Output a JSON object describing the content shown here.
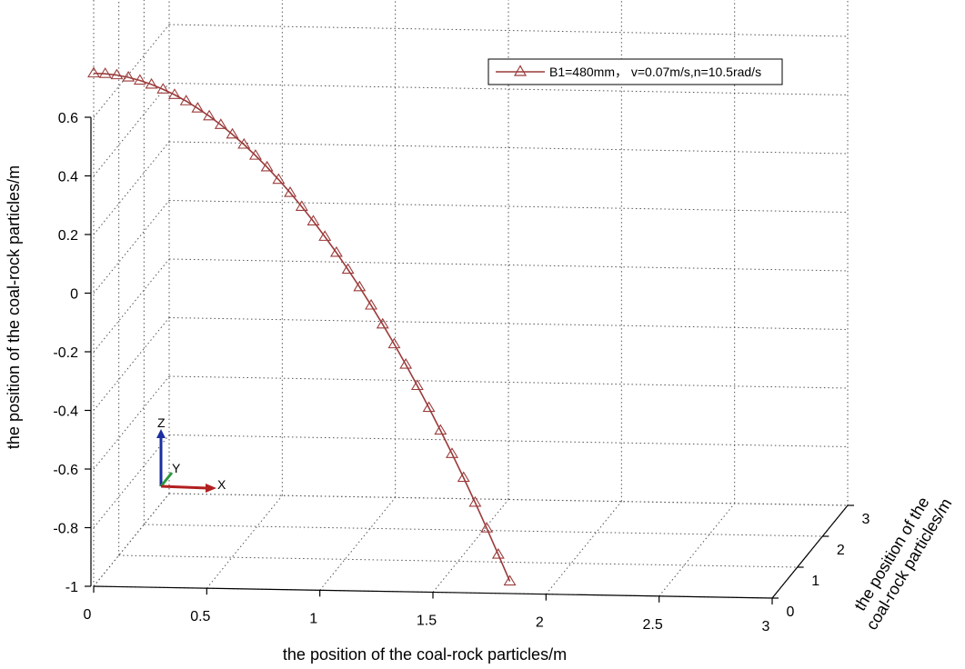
{
  "chart_data": {
    "type": "line",
    "title": "",
    "xlabel": "the position of the coal-rock particles/m",
    "ylabel": "the position of the coal-rock particles/m",
    "zlabel": "the position of the coal-rock particles/m",
    "ylabel_lines": [
      "the position of the",
      "coal-rock particles/m"
    ],
    "x_ticks": [
      "0",
      "0.5",
      "1",
      "1.5",
      "2",
      "2.5",
      "3"
    ],
    "y_ticks": [
      "0",
      "1",
      "2",
      "3"
    ],
    "z_ticks": [
      "0.6",
      "0.4",
      "0.2",
      "0",
      "-0.2",
      "-0.4",
      "-0.6",
      "-0.8",
      "-1"
    ],
    "xlim": [
      0,
      3
    ],
    "ylim": [
      0,
      3
    ],
    "zlim": [
      -1,
      0.6
    ],
    "grid": true,
    "legend_position": "top-right",
    "series": [
      {
        "name": "B1=480mm， v=0.07m/s,n=10.5rad/s",
        "color": "#9b3a3a",
        "marker": "triangle",
        "points": [
          {
            "x": 0.0,
            "y": 0.0,
            "z": 0.75
          },
          {
            "x": 0.05,
            "y": 0.01,
            "z": 0.748
          },
          {
            "x": 0.1,
            "y": 0.02,
            "z": 0.743
          },
          {
            "x": 0.15,
            "y": 0.03,
            "z": 0.735
          },
          {
            "x": 0.2,
            "y": 0.04,
            "z": 0.724
          },
          {
            "x": 0.25,
            "y": 0.05,
            "z": 0.71
          },
          {
            "x": 0.3,
            "y": 0.06,
            "z": 0.693
          },
          {
            "x": 0.35,
            "y": 0.07,
            "z": 0.674
          },
          {
            "x": 0.4,
            "y": 0.08,
            "z": 0.652
          },
          {
            "x": 0.45,
            "y": 0.09,
            "z": 0.627
          },
          {
            "x": 0.5,
            "y": 0.1,
            "z": 0.6
          },
          {
            "x": 0.55,
            "y": 0.11,
            "z": 0.57
          },
          {
            "x": 0.6,
            "y": 0.12,
            "z": 0.537
          },
          {
            "x": 0.65,
            "y": 0.13,
            "z": 0.502
          },
          {
            "x": 0.7,
            "y": 0.14,
            "z": 0.464
          },
          {
            "x": 0.75,
            "y": 0.15,
            "z": 0.424
          },
          {
            "x": 0.8,
            "y": 0.16,
            "z": 0.381
          },
          {
            "x": 0.85,
            "y": 0.17,
            "z": 0.336
          },
          {
            "x": 0.9,
            "y": 0.18,
            "z": 0.288
          },
          {
            "x": 0.95,
            "y": 0.19,
            "z": 0.238
          },
          {
            "x": 1.0,
            "y": 0.2,
            "z": 0.185
          },
          {
            "x": 1.05,
            "y": 0.21,
            "z": 0.13
          },
          {
            "x": 1.1,
            "y": 0.22,
            "z": 0.072
          },
          {
            "x": 1.15,
            "y": 0.23,
            "z": 0.012
          },
          {
            "x": 1.2,
            "y": 0.24,
            "z": -0.051
          },
          {
            "x": 1.25,
            "y": 0.25,
            "z": -0.116
          },
          {
            "x": 1.3,
            "y": 0.26,
            "z": -0.184
          },
          {
            "x": 1.35,
            "y": 0.27,
            "z": -0.254
          },
          {
            "x": 1.4,
            "y": 0.28,
            "z": -0.327
          },
          {
            "x": 1.45,
            "y": 0.29,
            "z": -0.402
          },
          {
            "x": 1.5,
            "y": 0.3,
            "z": -0.48
          },
          {
            "x": 1.55,
            "y": 0.31,
            "z": -0.56
          },
          {
            "x": 1.6,
            "y": 0.32,
            "z": -0.642
          },
          {
            "x": 1.65,
            "y": 0.33,
            "z": -0.727
          },
          {
            "x": 1.7,
            "y": 0.34,
            "z": -0.815
          },
          {
            "x": 1.75,
            "y": 0.35,
            "z": -0.905
          },
          {
            "x": 1.8,
            "y": 0.36,
            "z": -0.997
          }
        ]
      }
    ]
  }
}
